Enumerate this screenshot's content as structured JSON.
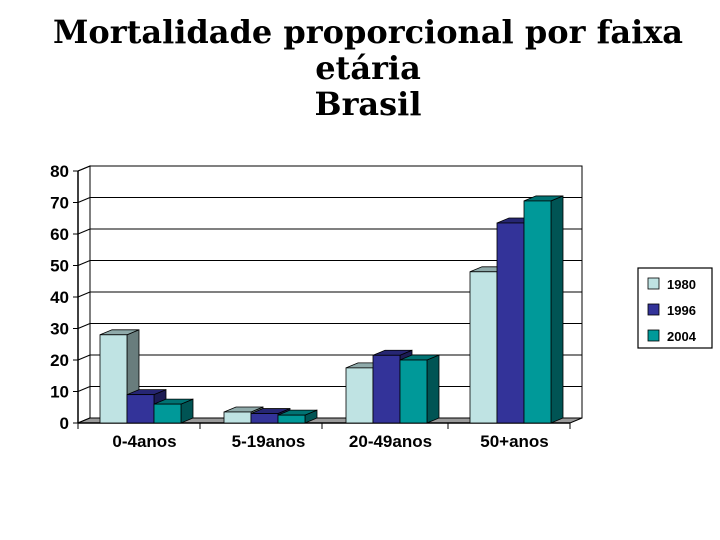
{
  "chart_data": {
    "type": "bar",
    "title_lines": [
      "Mortalidade proporcional por faixa",
      "etária",
      "Brasil"
    ],
    "categories": [
      "0-4anos",
      "5-19anos",
      "20-49anos",
      "50+anos"
    ],
    "series": [
      {
        "name": "1980",
        "values": [
          28,
          3.5,
          17.5,
          48
        ],
        "color": "#bfe3e3"
      },
      {
        "name": "1996",
        "values": [
          9,
          3,
          21.5,
          63.5
        ],
        "color": "#333399"
      },
      {
        "name": "2004",
        "values": [
          6,
          2.5,
          20,
          70.5
        ],
        "color": "#009999"
      }
    ],
    "ylim": [
      0,
      80
    ],
    "yticks": [
      0,
      10,
      20,
      30,
      40,
      50,
      60,
      70,
      80
    ],
    "grid": true,
    "legend_position": "right",
    "three_d": true
  }
}
